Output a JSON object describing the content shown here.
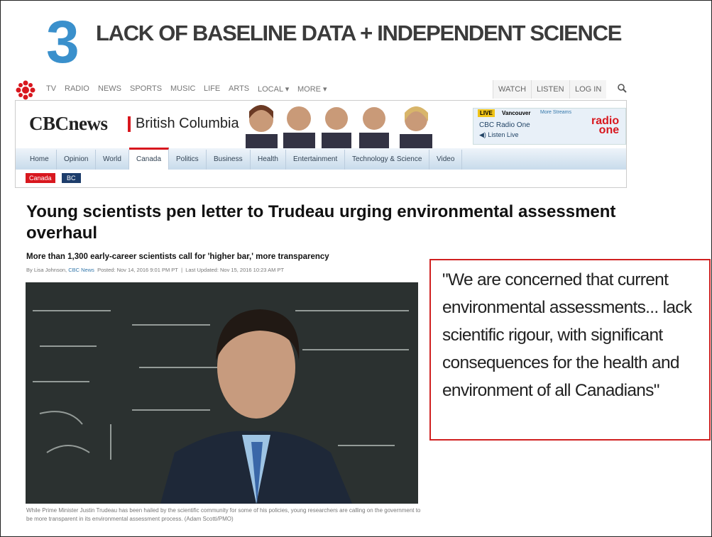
{
  "slide": {
    "number": "3",
    "title": "LACK OF BASELINE DATA + INDEPENDENT SCIENCE"
  },
  "nav": {
    "links": [
      "TV",
      "RADIO",
      "NEWS",
      "SPORTS",
      "MUSIC",
      "LIFE",
      "ARTS",
      "LOCAL ▾",
      "MORE ▾"
    ],
    "account": [
      "WATCH",
      "LISTEN",
      "LOG IN"
    ]
  },
  "header": {
    "brand": "CBCnews",
    "region": "British Columbia",
    "live": {
      "badge": "LIVE",
      "city": "Vancouver",
      "more": "More Streams",
      "station": "CBC Radio One",
      "listen": "◀) Listen Live",
      "logo_top": "radio",
      "logo_bottom": "one"
    }
  },
  "tabs": [
    "Home",
    "Opinion",
    "World",
    "Canada",
    "Politics",
    "Business",
    "Health",
    "Entertainment",
    "Technology & Science",
    "Video"
  ],
  "breadcrumb": [
    "Canada",
    "BC"
  ],
  "article": {
    "headline": "Young scientists pen letter to Trudeau urging environmental assessment overhaul",
    "subhead": "More than 1,300 early-career scientists call for 'higher bar,' more transparency",
    "byline": {
      "author": "By Lisa Johnson,",
      "outlet": "CBC News",
      "posted": "Posted: Nov 14, 2016 9:01 PM PT",
      "separator": "|",
      "updated": "Last Updated: Nov 15, 2016 10:23 AM PT"
    },
    "caption": "While Prime Minister Justin Trudeau has been hailed by the scientific community for some of his policies, young researchers are calling on the government to be more transparent in its environmental assessment process. (Adam Scotti/PMO)"
  },
  "quote": "\"We are concerned that current environmental assessments... lack scientific rigour, with significant consequences for the health and environment of all Canadians\""
}
